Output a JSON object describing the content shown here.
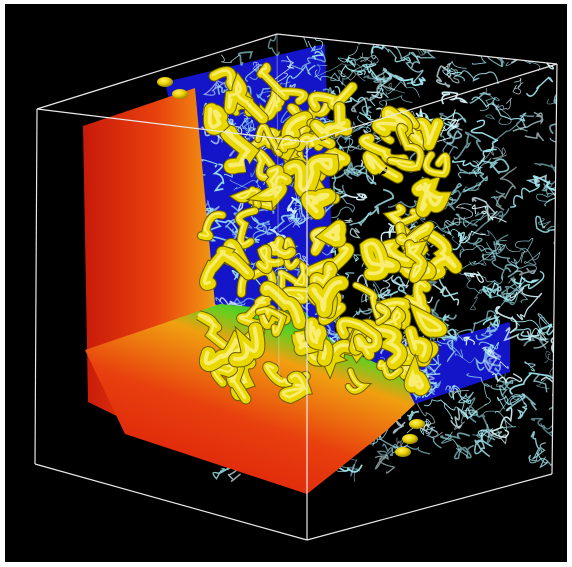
{
  "image": {
    "subject": "3d-turbulence-volume-render",
    "colors": {
      "background": "#000000",
      "frame": "#ffffff",
      "box_edges": "#e8e8e8",
      "plane_hot": "#e8200c",
      "plane_mid": "#f08a10",
      "plane_green": "#30c020",
      "plane_blue": "#1010c8",
      "isosurface": "#e8d800",
      "filaments": "#9fe6ee"
    }
  }
}
